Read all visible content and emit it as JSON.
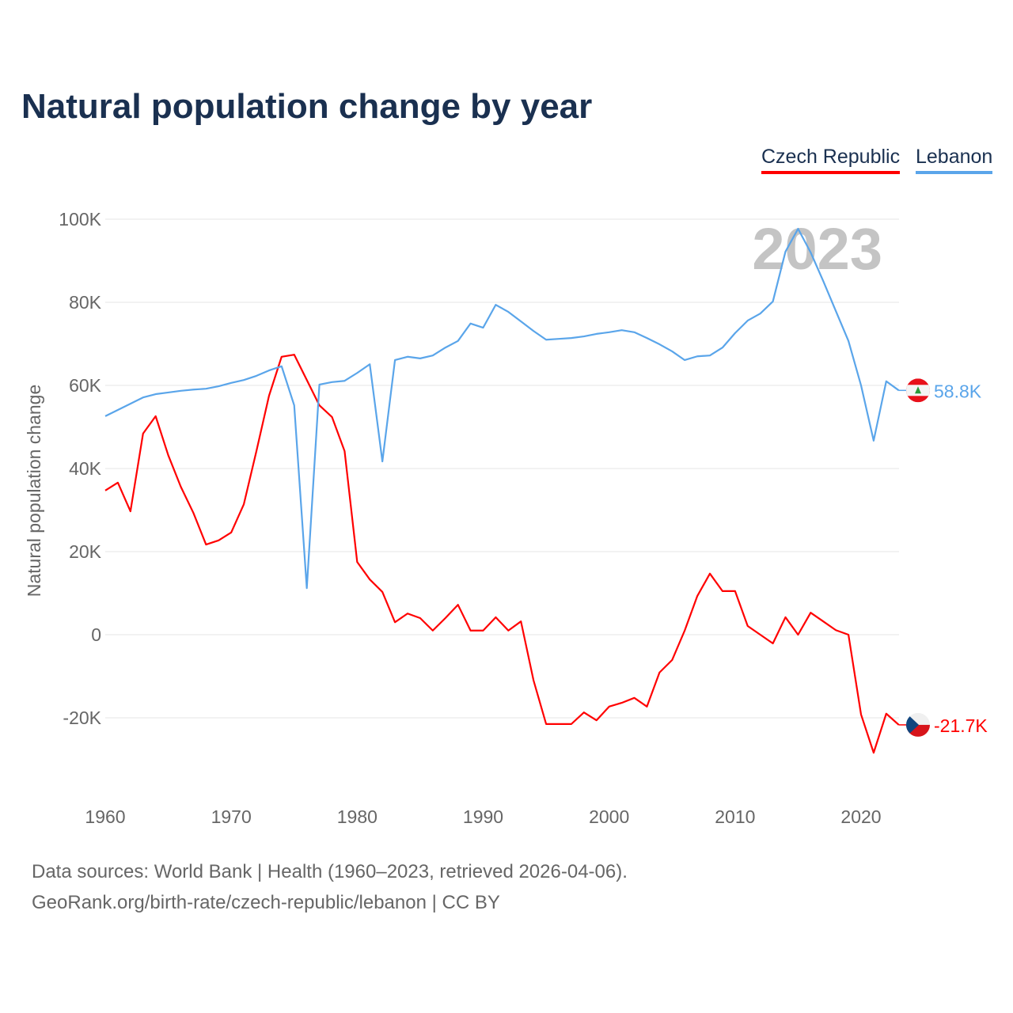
{
  "title": "Natural population change by year",
  "legend": [
    {
      "label": "Czech Republic",
      "color": "#ff0000"
    },
    {
      "label": "Lebanon",
      "color": "#5aa5ea"
    }
  ],
  "footer": {
    "line1": "Data sources: World Bank | Health (1960–2023, retrieved 2026-04-06).",
    "line2": "GeoRank.org/birth-rate/czech-republic/lebanon | CC BY"
  },
  "chart_data": {
    "type": "line",
    "title": "Natural population change by year",
    "xlabel": "",
    "ylabel": "Natural population change",
    "year_watermark": "2023",
    "xlim": [
      1960,
      2023
    ],
    "ylim": [
      -35000,
      105000
    ],
    "xticks": [
      1960,
      1970,
      1980,
      1990,
      2000,
      2010,
      2020
    ],
    "yticks": [
      {
        "v": -20000,
        "label": "-20K"
      },
      {
        "v": 0,
        "label": "0"
      },
      {
        "v": 20000,
        "label": "20K"
      },
      {
        "v": 40000,
        "label": "40K"
      },
      {
        "v": 60000,
        "label": "60K"
      },
      {
        "v": 80000,
        "label": "80K"
      },
      {
        "v": 100000,
        "label": "100K"
      }
    ],
    "grid": true,
    "x_start": 1960,
    "series": [
      {
        "name": "Czech Republic",
        "color": "#ff0000",
        "end_label": "-21.7K",
        "flag": "czech",
        "values": [
          34.7,
          36.6,
          29.7,
          48.4,
          52.6,
          43.2,
          35.6,
          29.3,
          21.7,
          22.7,
          24.6,
          31.4,
          44.2,
          57.5,
          66.9,
          67.4,
          61.3,
          55.2,
          52.4,
          44.2,
          17.5,
          13.3,
          10.3,
          3.0,
          5.1,
          4.0,
          1.0,
          4.0,
          7.2,
          1.0,
          1.0,
          4.2,
          1.0,
          3.2,
          -11.0,
          -21.5,
          -21.5,
          -21.5,
          -18.7,
          -20.6,
          -17.3,
          -16.4,
          -15.2,
          -17.3,
          -9.1,
          -6.1,
          1.0,
          9.3,
          14.7,
          10.5,
          10.5,
          2.1,
          0,
          -2.1,
          4.2,
          0,
          5.3,
          3.2,
          1.1,
          0,
          -19.2,
          -28.4,
          -19.0,
          -21.7
        ]
      },
      {
        "name": "Lebanon",
        "color": "#5aa5ea",
        "end_label": "58.8K",
        "flag": "lebanon",
        "values": [
          52.6,
          54.1,
          55.6,
          57.1,
          57.9,
          58.3,
          58.7,
          59.0,
          59.2,
          59.8,
          60.6,
          61.3,
          62.3,
          63.6,
          64.6,
          55.2,
          11.2,
          60.2,
          60.8,
          61.1,
          63.0,
          65.1,
          41.7,
          66.1,
          66.9,
          66.5,
          67.2,
          69.1,
          70.7,
          74.9,
          73.9,
          79.4,
          77.7,
          75.4,
          73.1,
          71.0,
          71.2,
          71.4,
          71.8,
          72.4,
          72.8,
          73.3,
          72.8,
          71.4,
          69.9,
          68.2,
          66.1,
          67.0,
          67.2,
          69.1,
          72.6,
          75.6,
          77.3,
          80.2,
          92.2,
          97.7,
          92.0,
          85.1,
          77.9,
          70.7,
          60.0,
          46.7,
          61.0,
          58.8
        ]
      }
    ],
    "values_unit": "thousands"
  }
}
